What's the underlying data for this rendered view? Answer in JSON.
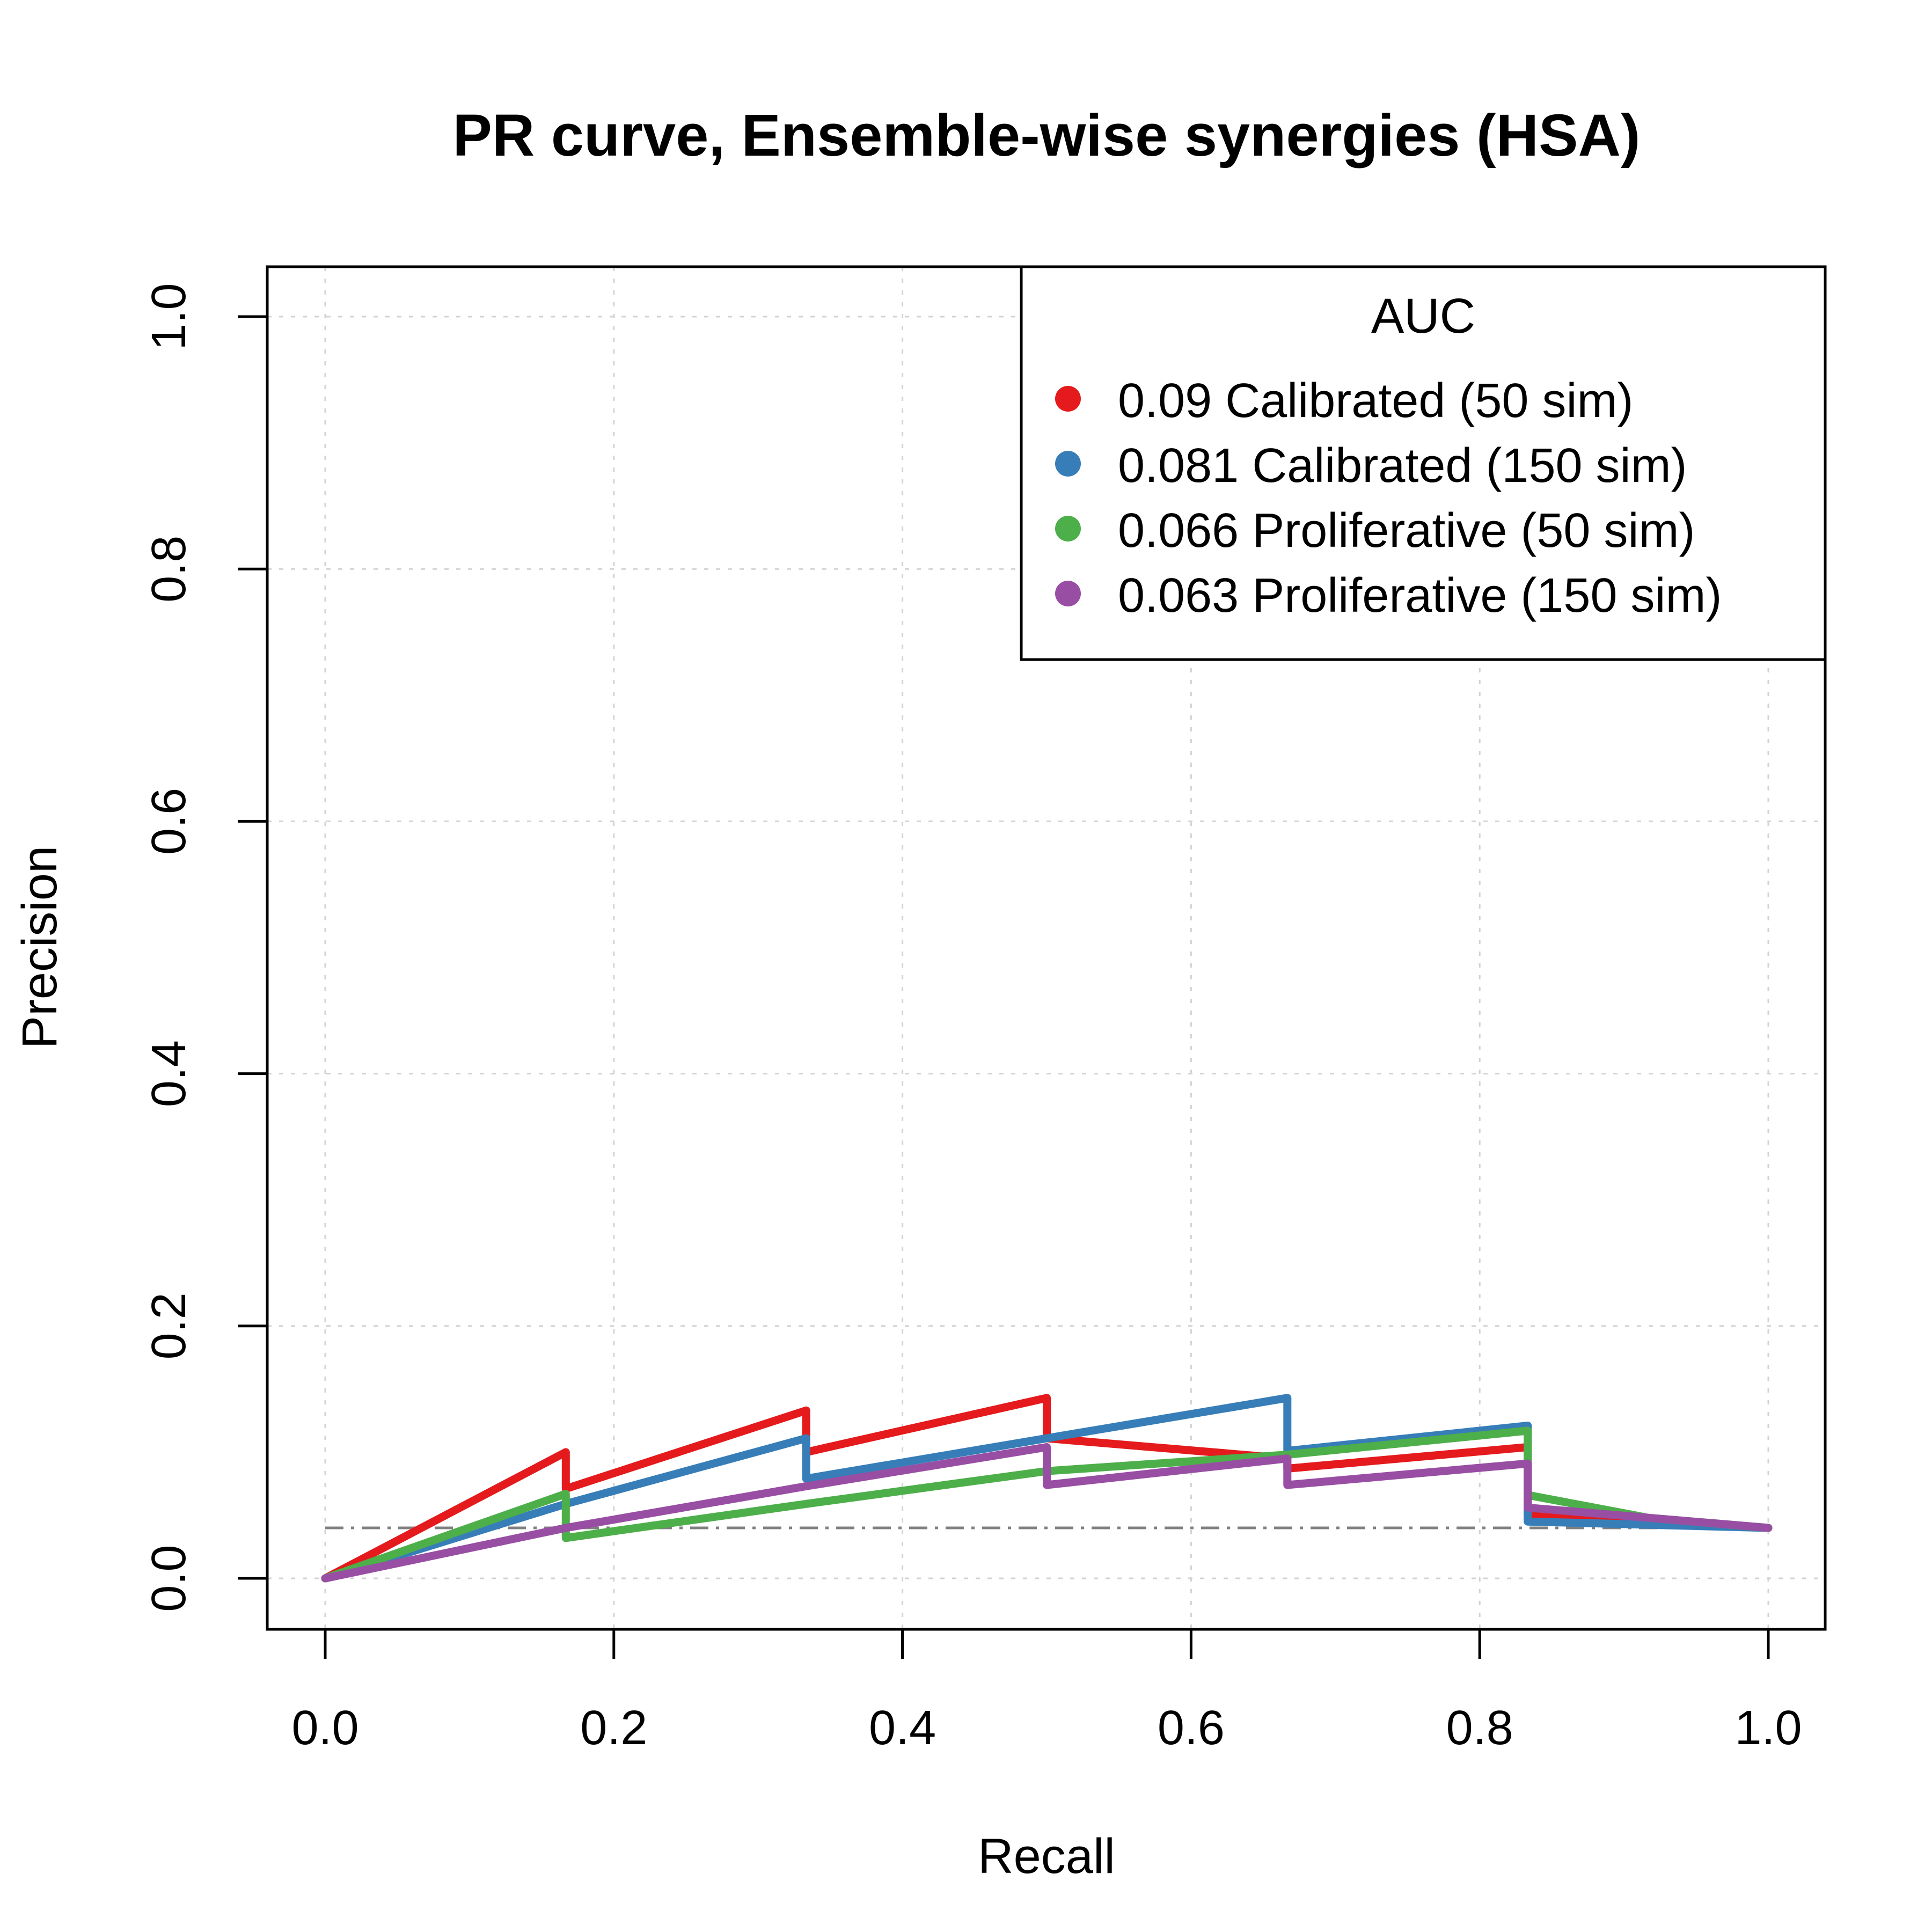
{
  "chart_data": {
    "type": "line",
    "title": "PR curve, Ensemble-wise synergies (HSA)",
    "xlabel": "Recall",
    "ylabel": "Precision",
    "xlim": [
      0,
      1
    ],
    "ylim": [
      0,
      1
    ],
    "x_ticks": [
      "0.0",
      "0.2",
      "0.4",
      "0.6",
      "0.8",
      "1.0"
    ],
    "y_ticks": [
      "0.0",
      "0.2",
      "0.4",
      "0.6",
      "0.8",
      "1.0"
    ],
    "grid": true,
    "legend": {
      "title": "AUC",
      "placement": "top-right"
    },
    "baseline": {
      "y": 0.04,
      "style": "dashed",
      "color": "#808080"
    },
    "series": [
      {
        "name": "0.09 Calibrated (50 sim)",
        "color": "#e41a1c",
        "x": [
          0,
          0.1667,
          0.1667,
          0.3333,
          0.3333,
          0.5,
          0.5,
          0.6667,
          0.6667,
          0.8333,
          0.8333,
          1.0
        ],
        "y": [
          0,
          0.1,
          0.071,
          0.133,
          0.1,
          0.143,
          0.111,
          0.095,
          0.087,
          0.104,
          0.05,
          0.04
        ]
      },
      {
        "name": "0.081 Calibrated (150 sim)",
        "color": "#377eb8",
        "x": [
          0,
          0.1667,
          0.3333,
          0.3333,
          0.5,
          0.6667,
          0.6667,
          0.8333,
          0.8333,
          1.0
        ],
        "y": [
          0,
          0.059,
          0.111,
          0.079,
          0.111,
          0.143,
          0.101,
          0.121,
          0.045,
          0.04
        ]
      },
      {
        "name": "0.066 Proliferative (50 sim)",
        "color": "#4daf4a",
        "x": [
          0,
          0.1667,
          0.1667,
          0.3333,
          0.5,
          0.6667,
          0.8333,
          0.8333,
          0.9167,
          1.0
        ],
        "y": [
          0,
          0.067,
          0.032,
          0.059,
          0.085,
          0.098,
          0.117,
          0.066,
          0.048,
          0.04
        ]
      },
      {
        "name": "0.063 Proliferative (150 sim)",
        "color": "#984ea3",
        "x": [
          0,
          0.1667,
          0.3333,
          0.5,
          0.5,
          0.6667,
          0.6667,
          0.8333,
          0.8333,
          1.0
        ],
        "y": [
          0,
          0.04,
          0.073,
          0.104,
          0.074,
          0.095,
          0.074,
          0.091,
          0.056,
          0.04
        ]
      }
    ]
  }
}
